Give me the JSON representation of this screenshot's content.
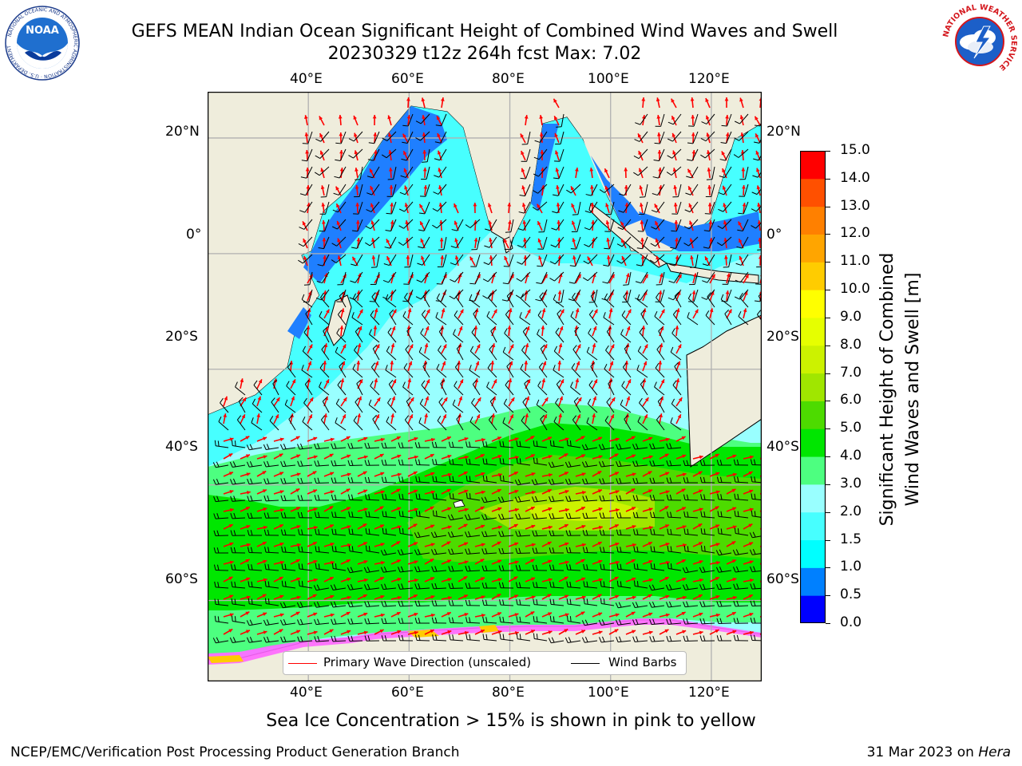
{
  "header": {
    "title_line1": "GEFS MEAN Indian Ocean Significant Height of Combined Wind Waves and Swell",
    "title_line2": "20230329 t12z 264h fcst   Max: 7.02",
    "noaa_logo_text": "NOAA",
    "noaa_ring_text": "NATIONAL OCEANIC AND ATMOSPHERIC ADMINISTRATION · U.S. DEPARTMENT OF COMMERCE",
    "nws_ring_text": "NATIONAL WEATHER SERVICE"
  },
  "map": {
    "lon_labels": [
      "40°E",
      "60°E",
      "80°E",
      "100°E",
      "120°E"
    ],
    "lat_labels": [
      "20°N",
      "0°",
      "20°S",
      "40°S",
      "60°S"
    ],
    "extent": {
      "lon_min": 20,
      "lon_max": 130,
      "lat_min": -74,
      "lat_max": 28
    },
    "colors": {
      "land": "#efeddc",
      "ocean_low": "#99ffff",
      "grid": "#b0b0b0",
      "arrow": "#ff0000",
      "barb": "#000000"
    }
  },
  "colorbar": {
    "label_line1": "Significant Height of Combined",
    "label_line2": "Wind Waves and Swell [m]",
    "ticks": [
      "0.0",
      "0.5",
      "1.0",
      "1.5",
      "2.0",
      "3.0",
      "4.0",
      "5.0",
      "6.0",
      "7.0",
      "8.0",
      "9.0",
      "10.0",
      "11.0",
      "12.0",
      "13.0",
      "14.0",
      "15.0"
    ],
    "colors": [
      "#0000ff",
      "#0080ff",
      "#00ffff",
      "#47ffff",
      "#99ffff",
      "#4dff80",
      "#00e600",
      "#4ddb00",
      "#a0e600",
      "#ccf200",
      "#e6ff00",
      "#ffff00",
      "#ffcc00",
      "#ffa500",
      "#ff8000",
      "#ff5000",
      "#ff0000"
    ]
  },
  "legend": {
    "wave_label": "Primary Wave Direction (unscaled)",
    "barb_label": "Wind Barbs"
  },
  "footer": {
    "ice_note": "Sea Ice Concentration > 15% is shown in pink to yellow",
    "branch": "NCEP/EMC/Verification Post Processing Product Generation Branch",
    "date": "31 Mar 2023 on ",
    "machine": "Hera"
  }
}
